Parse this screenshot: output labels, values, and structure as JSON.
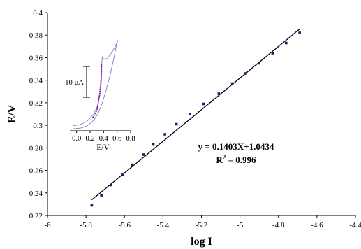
{
  "chart_data": [
    {
      "type": "scatter",
      "xlabel": "log I",
      "ylabel": "E/V",
      "xlim": [
        -6,
        -4.4
      ],
      "ylim": [
        0.22,
        0.4
      ],
      "x_ticks": [
        "-6",
        "-5.8",
        "-5.6",
        "-5.4",
        "-5.2",
        "-5",
        "-4.8",
        "-4.6",
        "-4.4"
      ],
      "y_ticks": [
        "0.22",
        "0.24",
        "0.26",
        "0.28",
        "0.3",
        "0.32",
        "0.34",
        "0.36",
        "0.38",
        "0.4"
      ],
      "grid": false,
      "points": [
        {
          "x": -5.77,
          "y": 0.229
        },
        {
          "x": -5.72,
          "y": 0.238
        },
        {
          "x": -5.67,
          "y": 0.247
        },
        {
          "x": -5.61,
          "y": 0.256
        },
        {
          "x": -5.56,
          "y": 0.265
        },
        {
          "x": -5.5,
          "y": 0.274
        },
        {
          "x": -5.45,
          "y": 0.283
        },
        {
          "x": -5.39,
          "y": 0.292
        },
        {
          "x": -5.33,
          "y": 0.301
        },
        {
          "x": -5.26,
          "y": 0.31
        },
        {
          "x": -5.19,
          "y": 0.319
        },
        {
          "x": -5.11,
          "y": 0.328
        },
        {
          "x": -5.04,
          "y": 0.337
        },
        {
          "x": -4.97,
          "y": 0.346
        },
        {
          "x": -4.9,
          "y": 0.355
        },
        {
          "x": -4.83,
          "y": 0.364
        },
        {
          "x": -4.76,
          "y": 0.373
        },
        {
          "x": -4.69,
          "y": 0.382
        }
      ],
      "fit": {
        "slope": 0.1403,
        "intercept": 1.0434,
        "x_range": [
          -5.77,
          -4.69
        ],
        "equation": "y = 0.1403X+1.0434",
        "r2_prefix": "R",
        "r2_sup": "2",
        "r2_suffix": " = 0.996"
      },
      "colors": {
        "points": "#1a1a7a",
        "fit_line": "#000000"
      }
    },
    {
      "type": "line",
      "position": "top-left inset",
      "xlabel": "E/V",
      "xlim": [
        -0.1,
        0.8
      ],
      "x_ticks": [
        "0.0",
        "0.2",
        "0.4",
        "0.6",
        "0.8"
      ],
      "scale_bar": "10 µA",
      "series": [
        {
          "style": "solid",
          "color": "#7b7bd4",
          "points": [
            [
              -0.05,
              0.02
            ],
            [
              0.05,
              0.025
            ],
            [
              0.15,
              0.045
            ],
            [
              0.25,
              0.1
            ],
            [
              0.32,
              0.17
            ],
            [
              0.38,
              0.27
            ],
            [
              0.44,
              0.4
            ],
            [
              0.5,
              0.55
            ],
            [
              0.55,
              0.7
            ],
            [
              0.59,
              0.83
            ],
            [
              0.61,
              0.88
            ]
          ]
        },
        {
          "style": "solid",
          "color": "#7b7bd4",
          "points": [
            [
              -0.05,
              0.05
            ],
            [
              0.05,
              0.06
            ],
            [
              0.15,
              0.09
            ],
            [
              0.25,
              0.16
            ],
            [
              0.31,
              0.24
            ],
            [
              0.35,
              0.36
            ],
            [
              0.37,
              0.5
            ],
            [
              0.37,
              0.62
            ],
            [
              0.38,
              0.72
            ],
            [
              0.4,
              0.7
            ],
            [
              0.45,
              0.7
            ],
            [
              0.52,
              0.76
            ],
            [
              0.58,
              0.83
            ],
            [
              0.61,
              0.88
            ]
          ]
        },
        {
          "style": "dotted",
          "color": "#8a1aa0",
          "points": [
            [
              0.24,
              0.13
            ],
            [
              0.26,
              0.15
            ],
            [
              0.28,
              0.17
            ],
            [
              0.3,
              0.2
            ],
            [
              0.31,
              0.23
            ],
            [
              0.32,
              0.27
            ],
            [
              0.33,
              0.31
            ],
            [
              0.34,
              0.36
            ],
            [
              0.35,
              0.42
            ],
            [
              0.36,
              0.5
            ],
            [
              0.37,
              0.57
            ],
            [
              0.37,
              0.65
            ]
          ]
        }
      ]
    }
  ]
}
